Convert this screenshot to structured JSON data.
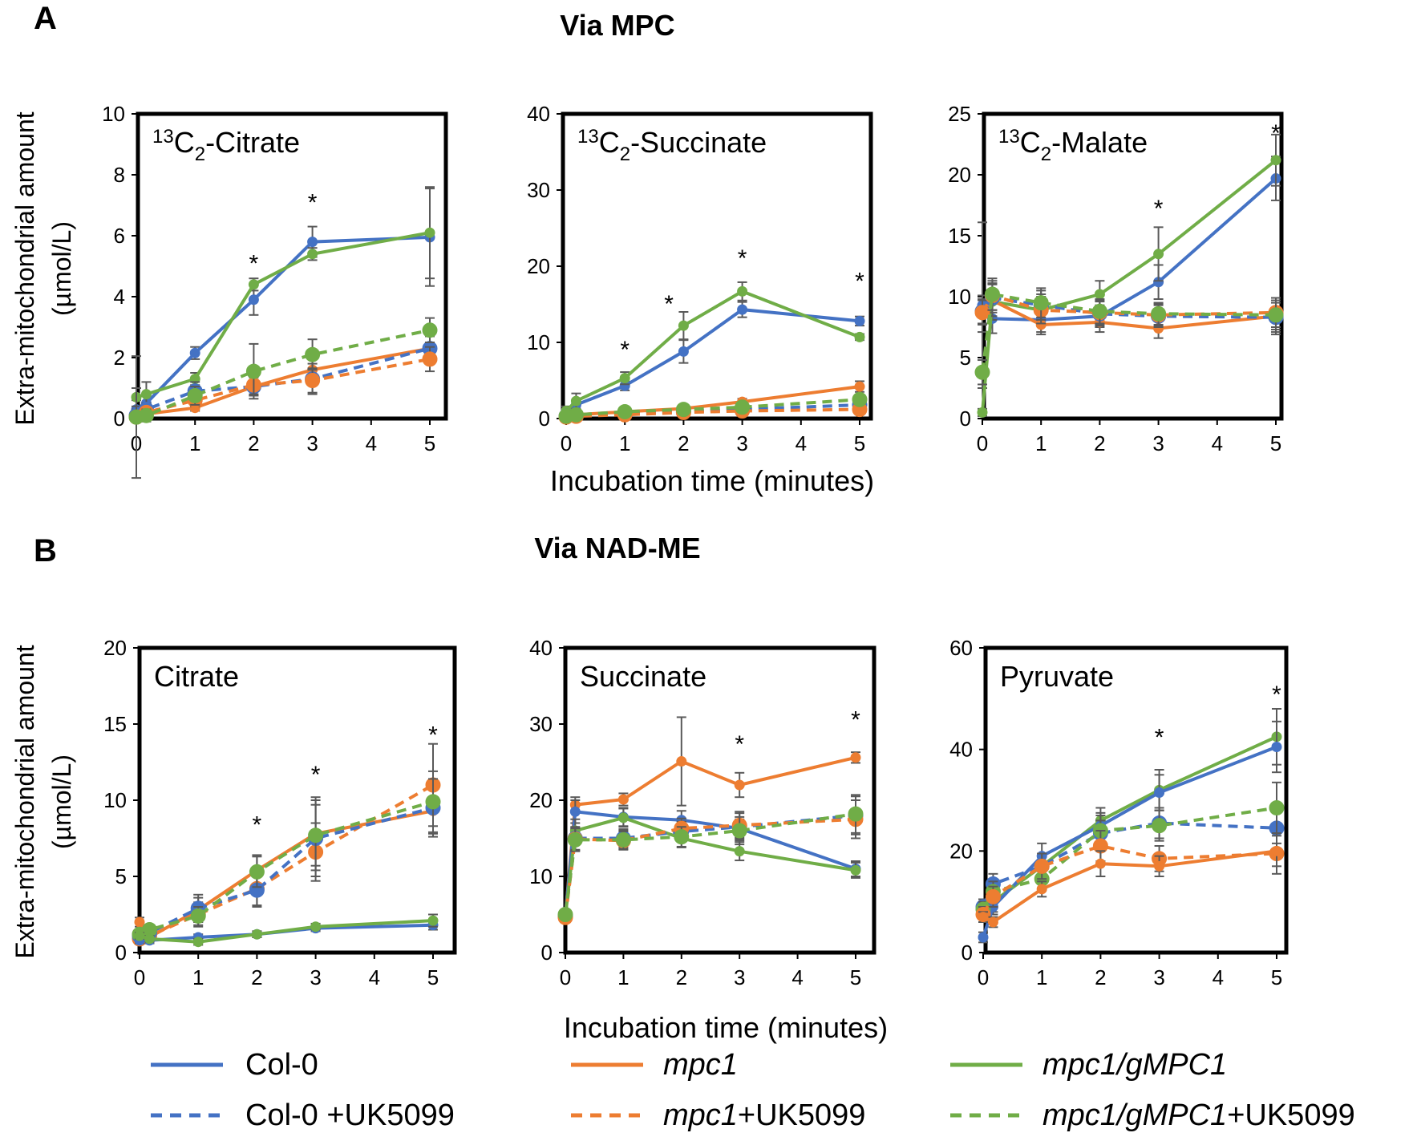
{
  "sections": {
    "A": {
      "letter": "A",
      "title": "Via MPC"
    },
    "B": {
      "letter": "B",
      "title": "Via NAD-ME"
    }
  },
  "ylabel_line1": "Extra-mitochondrial amount",
  "ylabel_line2": "(µmol/L)",
  "xlabel": "Incubation time (minutes)",
  "colors": {
    "col0": "#4472c4",
    "mpc1": "#ed7d31",
    "gmpc1": "#70ad47",
    "errorbar": "#595959"
  },
  "legend": [
    {
      "key": "col0",
      "name": "Col-0",
      "dashed": false,
      "italic": "",
      "plain": "Col-0"
    },
    {
      "key": "mpc1",
      "name": "mpc1",
      "dashed": false,
      "italic": "mpc1",
      "plain": ""
    },
    {
      "key": "gmpc1",
      "name": "mpc1/gMPC1",
      "dashed": false,
      "italic": "mpc1/gMPC1",
      "plain": ""
    },
    {
      "key": "col0",
      "name": "Col-0 +UK5099",
      "dashed": true,
      "italic": "",
      "plain": "Col-0 +UK5099"
    },
    {
      "key": "mpc1",
      "name": "mpc1+UK5099",
      "dashed": true,
      "italic": "mpc1",
      "plain": "+UK5099"
    },
    {
      "key": "gmpc1",
      "name": "mpc1/gMPC1+UK5099",
      "dashed": true,
      "italic": "mpc1/gMPC1",
      "plain": "+UK5099"
    }
  ],
  "chart_data": [
    {
      "type": "line",
      "section": "A",
      "title": "13C2-Citrate",
      "title_sup": "13",
      "title_base": "C",
      "title_sub": "2",
      "title_rest": "-Citrate",
      "x": [
        0,
        0.17,
        1,
        2,
        3,
        5
      ],
      "xticks": [
        0,
        1,
        2,
        3,
        4,
        5
      ],
      "xlim": [
        0,
        5
      ],
      "ylim": [
        0,
        10
      ],
      "yticks": [
        0,
        2,
        4,
        6,
        8,
        10
      ],
      "significance": [
        {
          "x": 2,
          "y": 5.2
        },
        {
          "x": 3,
          "y": 7.2
        }
      ],
      "series": [
        {
          "name": "Col-0",
          "key": "col0",
          "dashed": false,
          "values": [
            0.3,
            0.5,
            2.15,
            3.9,
            5.8,
            5.95
          ],
          "errors": [
            0.3,
            0.3,
            0.2,
            0.5,
            0.5,
            1.6
          ]
        },
        {
          "name": "mpc1/gMPC1",
          "key": "gmpc1",
          "dashed": false,
          "values": [
            0.7,
            0.8,
            1.3,
            4.4,
            5.4,
            6.1
          ],
          "errors": [
            0.3,
            0.4,
            0.2,
            0.2,
            0.2,
            1.5
          ]
        },
        {
          "name": "mpc1",
          "key": "mpc1",
          "dashed": false,
          "values": [
            0.1,
            0.15,
            0.35,
            1.05,
            1.6,
            2.3
          ],
          "errors": [
            0.1,
            0.1,
            0.1,
            0.3,
            0.4,
            0.4
          ]
        },
        {
          "name": "Col-0 +UK5099",
          "key": "col0",
          "dashed": true,
          "values": [
            0.1,
            0.3,
            0.9,
            1.05,
            1.3,
            2.3
          ],
          "errors": [
            0.2,
            0.2,
            0.3,
            0.3,
            0.5,
            0.4
          ]
        },
        {
          "name": "mpc1+UK5099",
          "key": "mpc1",
          "dashed": true,
          "values": [
            0.05,
            0.2,
            0.6,
            1.1,
            1.25,
            1.95
          ],
          "errors": [
            0.1,
            0.1,
            0.2,
            0.3,
            0.4,
            0.4
          ]
        },
        {
          "name": "mpc1/gMPC1+UK5099",
          "key": "gmpc1",
          "dashed": true,
          "values": [
            0.05,
            0.1,
            0.75,
            1.55,
            2.1,
            2.9
          ],
          "errors": [
            2.0,
            0.2,
            0.3,
            0.9,
            0.5,
            0.4
          ]
        }
      ]
    },
    {
      "type": "line",
      "section": "A",
      "title": "13C2-Succinate",
      "title_sup": "13",
      "title_base": "C",
      "title_sub": "2",
      "title_rest": "-Succinate",
      "x": [
        0,
        0.17,
        1,
        2,
        3,
        5
      ],
      "xticks": [
        0,
        1,
        2,
        3,
        4,
        5
      ],
      "xlim": [
        0,
        5
      ],
      "ylim": [
        0,
        40
      ],
      "yticks": [
        0,
        10,
        20,
        30,
        40
      ],
      "significance": [
        {
          "x": 1,
          "y": 9.5
        },
        {
          "x": 1.75,
          "y": 15.5
        },
        {
          "x": 3,
          "y": 21.5
        },
        {
          "x": 5,
          "y": 18.5
        }
      ],
      "series": [
        {
          "name": "Col-0",
          "key": "col0",
          "dashed": false,
          "values": [
            0.7,
            1.8,
            4.3,
            8.8,
            14.3,
            12.8
          ],
          "errors": [
            0.6,
            0.7,
            0.6,
            1.5,
            1.0,
            0.6
          ]
        },
        {
          "name": "mpc1/gMPC1",
          "key": "gmpc1",
          "dashed": false,
          "values": [
            1.0,
            2.3,
            5.3,
            12.2,
            16.7,
            10.7
          ],
          "errors": [
            0.6,
            1.0,
            0.8,
            1.8,
            1.2,
            0.4
          ]
        },
        {
          "name": "mpc1",
          "key": "mpc1",
          "dashed": false,
          "values": [
            0.3,
            0.5,
            0.9,
            1.3,
            2.2,
            4.2
          ],
          "errors": [
            0.3,
            0.3,
            0.2,
            0.3,
            0.4,
            0.7
          ]
        },
        {
          "name": "Col-0 +UK5099",
          "key": "col0",
          "dashed": true,
          "values": [
            0.3,
            0.4,
            0.7,
            0.9,
            1.2,
            1.8
          ],
          "errors": [
            0.3,
            0.3,
            0.2,
            0.2,
            0.3,
            0.4
          ]
        },
        {
          "name": "mpc1+UK5099",
          "key": "mpc1",
          "dashed": true,
          "values": [
            0.2,
            0.3,
            0.5,
            0.8,
            1.0,
            1.2
          ],
          "errors": [
            0.2,
            0.2,
            0.2,
            0.2,
            0.3,
            0.3
          ]
        },
        {
          "name": "mpc1/gMPC1+UK5099",
          "key": "gmpc1",
          "dashed": true,
          "values": [
            0.3,
            0.5,
            0.9,
            1.2,
            1.5,
            2.5
          ],
          "errors": [
            0.3,
            0.3,
            0.2,
            0.3,
            0.3,
            0.4
          ]
        }
      ]
    },
    {
      "type": "line",
      "section": "A",
      "title": "13C2-Malate",
      "title_sup": "13",
      "title_base": "C",
      "title_sub": "2",
      "title_rest": "-Malate",
      "x": [
        0,
        0.17,
        1,
        2,
        3,
        5
      ],
      "xticks": [
        0,
        1,
        2,
        3,
        4,
        5
      ],
      "xlim": [
        0,
        5
      ],
      "ylim": [
        0,
        25
      ],
      "yticks": [
        0,
        5,
        10,
        15,
        20,
        25
      ],
      "significance": [
        {
          "x": 3,
          "y": 17.5
        },
        {
          "x": 5,
          "y": 23.7
        }
      ],
      "series": [
        {
          "name": "Col-0",
          "key": "col0",
          "dashed": false,
          "values": [
            9.3,
            8.2,
            8.1,
            8.4,
            11.2,
            19.7
          ],
          "errors": [
            6.8,
            1.2,
            1.0,
            0.9,
            1.4,
            1.8
          ]
        },
        {
          "name": "mpc1/gMPC1",
          "key": "gmpc1",
          "dashed": false,
          "values": [
            0.5,
            9.6,
            8.9,
            10.2,
            13.5,
            21.2
          ],
          "errors": [
            0.3,
            1.5,
            1.3,
            1.1,
            2.2,
            2.1
          ]
        },
        {
          "name": "mpc1",
          "key": "mpc1",
          "dashed": false,
          "values": [
            8.6,
            9.7,
            7.7,
            7.9,
            7.4,
            8.4
          ],
          "errors": [
            1.5,
            1.3,
            0.8,
            0.8,
            0.8,
            1.5
          ]
        },
        {
          "name": "Col-0 +UK5099",
          "key": "col0",
          "dashed": true,
          "values": [
            8.8,
            9.9,
            9.3,
            8.6,
            8.4,
            8.3
          ],
          "errors": [
            1.0,
            1.2,
            1.2,
            1.0,
            0.9,
            1.2
          ]
        },
        {
          "name": "mpc1+UK5099",
          "key": "mpc1",
          "dashed": true,
          "values": [
            8.7,
            10.1,
            8.9,
            8.7,
            8.5,
            8.7
          ],
          "errors": [
            1.0,
            1.2,
            1.1,
            1.0,
            0.9,
            1.2
          ]
        },
        {
          "name": "mpc1/gMPC1+UK5099",
          "key": "gmpc1",
          "dashed": true,
          "values": [
            3.8,
            10.2,
            9.5,
            8.8,
            8.6,
            8.5
          ],
          "errors": [
            1.0,
            1.3,
            1.2,
            1.0,
            0.9,
            1.2
          ]
        }
      ]
    },
    {
      "type": "line",
      "section": "B",
      "title": "Citrate",
      "title_sup": "",
      "title_base": "Citrate",
      "title_sub": "",
      "title_rest": "",
      "x": [
        0,
        0.17,
        1,
        2,
        3,
        5
      ],
      "xticks": [
        0,
        1,
        2,
        3,
        4,
        5
      ],
      "xlim": [
        0,
        5
      ],
      "ylim": [
        0,
        20
      ],
      "yticks": [
        0,
        5,
        10,
        15,
        20
      ],
      "significance": [
        {
          "x": 2,
          "y": 8.6
        },
        {
          "x": 3,
          "y": 11.9
        },
        {
          "x": 5,
          "y": 14.5
        }
      ],
      "series": [
        {
          "name": "mpc1",
          "key": "mpc1",
          "dashed": false,
          "values": [
            2.0,
            1.0,
            2.8,
            5.4,
            7.8,
            9.3
          ],
          "errors": [
            0.3,
            0.3,
            0.8,
            1.0,
            2.4,
            1.5
          ]
        },
        {
          "name": "mpc1+UK5099",
          "key": "mpc1",
          "dashed": true,
          "values": [
            0.9,
            1.1,
            2.5,
            4.2,
            6.6,
            11.0
          ],
          "errors": [
            0.3,
            0.3,
            0.8,
            1.2,
            1.9,
            2.7
          ]
        },
        {
          "name": "Col-0 +UK5099",
          "key": "col0",
          "dashed": true,
          "values": [
            1.1,
            1.3,
            2.9,
            4.1,
            7.5,
            9.5
          ],
          "errors": [
            0.3,
            0.3,
            0.9,
            1.0,
            2.5,
            1.9
          ]
        },
        {
          "name": "mpc1/gMPC1+UK5099",
          "key": "gmpc1",
          "dashed": true,
          "values": [
            1.2,
            1.5,
            2.4,
            5.3,
            7.7,
            9.9
          ],
          "errors": [
            0.3,
            0.3,
            0.6,
            1.0,
            2.0,
            2.0
          ]
        },
        {
          "name": "Col-0",
          "key": "col0",
          "dashed": false,
          "values": [
            0.8,
            0.8,
            1.0,
            1.2,
            1.6,
            1.8
          ],
          "errors": [
            0.2,
            0.2,
            0.2,
            0.2,
            0.2,
            0.3
          ]
        },
        {
          "name": "mpc1/gMPC1",
          "key": "gmpc1",
          "dashed": false,
          "values": [
            1.1,
            0.9,
            0.7,
            1.2,
            1.7,
            2.1
          ],
          "errors": [
            0.2,
            0.2,
            0.2,
            0.2,
            0.2,
            0.4
          ]
        }
      ]
    },
    {
      "type": "line",
      "section": "B",
      "title": "Succinate",
      "title_sup": "",
      "title_base": "Succinate",
      "title_sub": "",
      "title_rest": "",
      "x": [
        0,
        0.17,
        1,
        2,
        3,
        5
      ],
      "xticks": [
        0,
        1,
        2,
        3,
        4,
        5
      ],
      "xlim": [
        0,
        5
      ],
      "ylim": [
        0,
        40
      ],
      "yticks": [
        0,
        10,
        20,
        30,
        40
      ],
      "significance": [
        {
          "x": 3,
          "y": 27.8
        },
        {
          "x": 5,
          "y": 31.0
        }
      ],
      "series": [
        {
          "name": "mpc1",
          "key": "mpc1",
          "dashed": false,
          "values": [
            4.8,
            19.4,
            20.1,
            25.1,
            22.0,
            25.6
          ],
          "errors": [
            0.5,
            1.0,
            0.8,
            5.8,
            1.6,
            0.7
          ]
        },
        {
          "name": "Col-0",
          "key": "col0",
          "dashed": false,
          "values": [
            4.8,
            18.5,
            17.8,
            17.4,
            16.3,
            11.0
          ],
          "errors": [
            0.5,
            1.5,
            1.2,
            1.2,
            1.2,
            1.0
          ]
        },
        {
          "name": "mpc1/gMPC1",
          "key": "gmpc1",
          "dashed": false,
          "values": [
            4.8,
            16.0,
            17.7,
            15.0,
            13.3,
            10.8
          ],
          "errors": [
            0.5,
            1.5,
            1.2,
            1.2,
            1.2,
            1.0
          ]
        },
        {
          "name": "Col-0 +UK5099",
          "key": "col0",
          "dashed": true,
          "values": [
            4.8,
            15.0,
            15.0,
            15.9,
            16.5,
            18.0
          ],
          "errors": [
            0.5,
            1.5,
            1.2,
            1.3,
            1.8,
            2.5
          ]
        },
        {
          "name": "mpc1+UK5099",
          "key": "mpc1",
          "dashed": true,
          "values": [
            4.6,
            14.9,
            14.7,
            16.3,
            16.7,
            17.5
          ],
          "errors": [
            0.5,
            1.5,
            1.2,
            1.3,
            1.8,
            2.5
          ]
        },
        {
          "name": "mpc1/gMPC1+UK5099",
          "key": "gmpc1",
          "dashed": true,
          "values": [
            5.0,
            14.8,
            14.8,
            15.2,
            16.0,
            18.2
          ],
          "errors": [
            0.5,
            1.5,
            1.2,
            1.3,
            1.8,
            2.5
          ]
        }
      ]
    },
    {
      "type": "line",
      "section": "B",
      "title": "Pyruvate",
      "title_sup": "",
      "title_base": "Pyruvate",
      "title_sub": "",
      "title_rest": "",
      "x": [
        0,
        0.17,
        1,
        2,
        3,
        5
      ],
      "xticks": [
        0,
        1,
        2,
        3,
        4,
        5
      ],
      "xlim": [
        0,
        5
      ],
      "ylim": [
        0,
        60
      ],
      "yticks": [
        0,
        20,
        40,
        60
      ],
      "significance": [
        {
          "x": 3,
          "y": 43.0
        },
        {
          "x": 5,
          "y": 51.5
        }
      ],
      "series": [
        {
          "name": "mpc1/gMPC1",
          "key": "gmpc1",
          "dashed": false,
          "values": [
            8.0,
            10.0,
            17.0,
            26.0,
            32.0,
            42.5
          ],
          "errors": [
            1.5,
            2.0,
            2.0,
            2.5,
            4.0,
            5.5
          ]
        },
        {
          "name": "Col-0",
          "key": "col0",
          "dashed": false,
          "values": [
            3.0,
            9.0,
            19.0,
            25.0,
            31.5,
            40.5
          ],
          "errors": [
            1.0,
            1.5,
            2.5,
            2.5,
            3.5,
            5.0
          ]
        },
        {
          "name": "Col-0 +UK5099",
          "key": "col0",
          "dashed": true,
          "values": [
            9.0,
            13.5,
            17.0,
            23.5,
            25.5,
            24.5
          ],
          "errors": [
            1.5,
            2.0,
            2.5,
            2.5,
            3.0,
            3.0
          ]
        },
        {
          "name": "mpc1/gMPC1+UK5099",
          "key": "gmpc1",
          "dashed": true,
          "values": [
            8.5,
            12.0,
            14.5,
            24.0,
            25.0,
            28.5
          ],
          "errors": [
            1.5,
            2.0,
            2.0,
            3.0,
            3.0,
            5.0
          ]
        },
        {
          "name": "mpc1+UK5099",
          "key": "mpc1",
          "dashed": true,
          "values": [
            7.5,
            11.0,
            17.0,
            21.0,
            18.5,
            19.5
          ],
          "errors": [
            1.5,
            2.0,
            2.5,
            3.0,
            2.5,
            4.0
          ]
        },
        {
          "name": "mpc1",
          "key": "mpc1",
          "dashed": false,
          "values": [
            7.0,
            6.0,
            12.5,
            17.5,
            17.0,
            20.0
          ],
          "errors": [
            1.0,
            1.0,
            1.5,
            2.5,
            2.0,
            3.0
          ]
        }
      ]
    }
  ]
}
